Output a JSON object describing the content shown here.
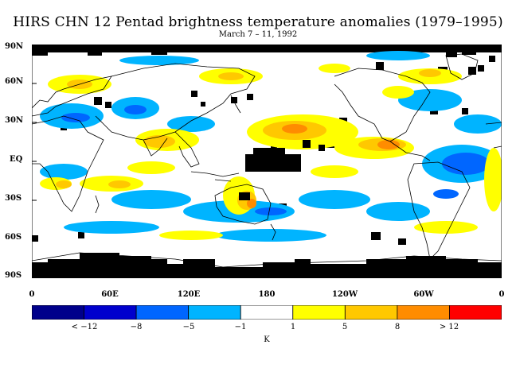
{
  "title": "HIRS CHN 12 Pentad brightness temperature anomalies (1979–1995)",
  "subtitle": "March 7 – 11, 1992",
  "lat_labels": [
    "90N",
    "60N",
    "30N",
    "EQ",
    "30S",
    "60S",
    "90S"
  ],
  "lon_labels": [
    "0",
    "60E",
    "120E",
    "180",
    "120W",
    "60W",
    "0"
  ],
  "colorbar": {
    "colors": [
      "#00008b",
      "#0000cd",
      "#0066ff",
      "#00b4ff",
      "#ffffff",
      "#ffff00",
      "#ffc800",
      "#ff8c00",
      "#ff0000"
    ],
    "labels": [
      "< −12",
      "−8",
      "−5",
      "−1",
      "1",
      "5",
      "8",
      "> 12"
    ],
    "unit": "K"
  },
  "palette": {
    "missing": "#000000",
    "cold1": "#00b4ff",
    "cold2": "#0066ff",
    "warm1": "#ffff00",
    "warm2": "#ffc800",
    "warm3": "#ff8c00",
    "coast": "#000000"
  }
}
